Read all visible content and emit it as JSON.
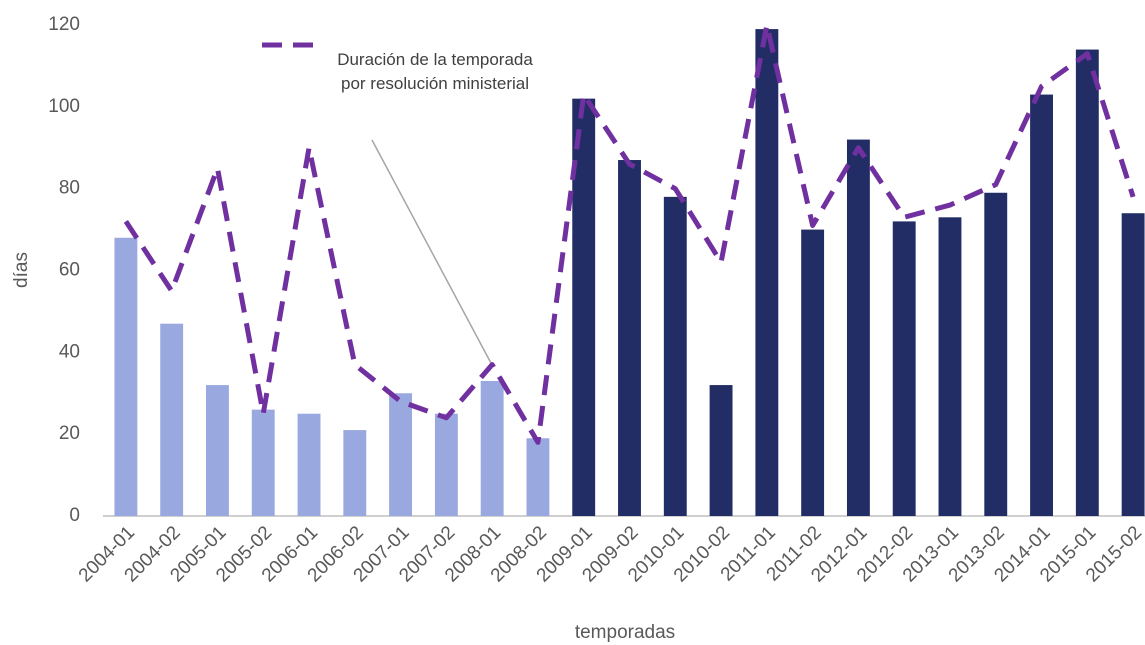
{
  "chart_data": {
    "type": "bar_line",
    "x_label": "temporadas",
    "y_label": "días",
    "categories": [
      "2004-01",
      "2004-02",
      "2005-01",
      "2005-02",
      "2006-01",
      "2006-02",
      "2007-01",
      "2007-02",
      "2008-01",
      "2008-02",
      "2009-01",
      "2009-02",
      "2010-01",
      "2010-02",
      "2011-01",
      "2011-02",
      "2012-01",
      "2012-02",
      "2013-01",
      "2013-02",
      "2014-01",
      "2015-01",
      "2015-02"
    ],
    "bar_values": [
      68,
      47,
      32,
      26,
      25,
      21,
      30,
      25,
      33,
      19,
      102,
      87,
      78,
      32,
      119,
      70,
      92,
      72,
      73,
      79,
      103,
      114,
      74
    ],
    "bar_colors": [
      "#9aa8e0",
      "#9aa8e0",
      "#9aa8e0",
      "#9aa8e0",
      "#9aa8e0",
      "#9aa8e0",
      "#9aa8e0",
      "#9aa8e0",
      "#9aa8e0",
      "#9aa8e0",
      "#222d66",
      "#222d66",
      "#222d66",
      "#222d66",
      "#222d66",
      "#222d66",
      "#222d66",
      "#222d66",
      "#222d66",
      "#222d66",
      "#222d66",
      "#222d66",
      "#222d66"
    ],
    "series": [
      {
        "name": "Duración de la temporada por resolución ministerial",
        "color": "#7030a0",
        "values": [
          72,
          55,
          85,
          25,
          90,
          37,
          28,
          24,
          37,
          18,
          103,
          86,
          80,
          62,
          120,
          71,
          90,
          73,
          76,
          81,
          105,
          113,
          78
        ]
      }
    ],
    "ylim": [
      0,
      120
    ],
    "yticks": [
      0,
      20,
      40,
      60,
      80,
      100,
      120
    ],
    "grid": false
  }
}
